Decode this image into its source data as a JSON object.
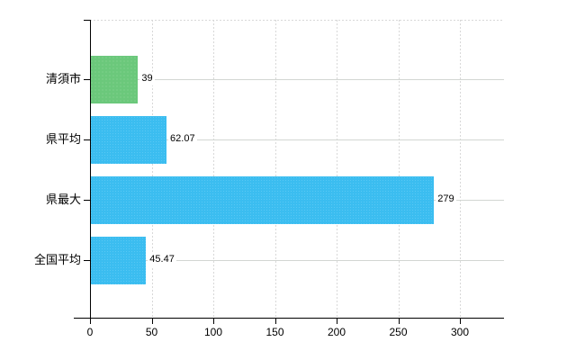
{
  "chart_data": {
    "type": "bar",
    "orientation": "horizontal",
    "categories": [
      "清須市",
      "県平均",
      "県最大",
      "全国平均"
    ],
    "values": [
      39,
      62.07,
      279,
      45.47
    ],
    "value_labels": [
      "39",
      "62.07",
      "279",
      "45.47"
    ],
    "series": [
      {
        "name": "value",
        "values": [
          39,
          62.07,
          279,
          45.47
        ]
      }
    ],
    "bar_colors": [
      "#6bc87b",
      "#3bbdf0",
      "#3bbdf0",
      "#3bbdf0"
    ],
    "x_ticks": [
      0,
      50,
      100,
      150,
      200,
      250,
      300
    ],
    "x_tick_labels": [
      "0",
      "50",
      "100",
      "150",
      "200",
      "250",
      "300"
    ],
    "xlim": [
      0,
      336
    ],
    "grid": {
      "vertical_style": "dashed",
      "horizontal_style": "solid",
      "grid_color": "#d8d8d8",
      "row_line_color": "#d2d6d2"
    },
    "axis_color": "#000000",
    "background_color": "#ffffff",
    "legend": "none"
  }
}
